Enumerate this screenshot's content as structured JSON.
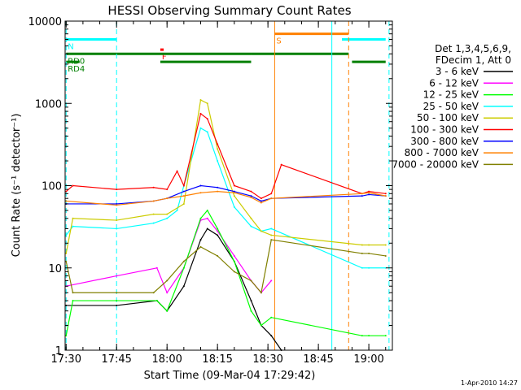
{
  "footer_date": "1-Apr-2010 14:27",
  "chart_data": {
    "type": "line",
    "title": "HESSI Observing Summary Count Rates",
    "xlabel": "Start Time (09-Mar-04 17:29:42)",
    "ylabel": "Count Rate (s⁻¹ detector⁻¹)",
    "yscale": "log",
    "ylim": [
      1,
      10000
    ],
    "xlim": [
      "17:29:42",
      "19:07:00"
    ],
    "x_ticks": [
      "17:30",
      "17:45",
      "18:00",
      "18:15",
      "18:30",
      "18:45",
      "19:00"
    ],
    "y_ticks": [
      "1",
      "10",
      "100",
      "1000",
      "10000"
    ],
    "grid": false,
    "legend_position": "right",
    "legend_header": [
      "Det 1,3,4,5,6,9,",
      "FDecim 1, Att 0"
    ],
    "series": [
      {
        "name": "3 - 6 keV",
        "color": "#000000",
        "x": [
          "17:30",
          "17:45",
          "17:57",
          "18:00",
          "18:05",
          "18:10",
          "18:12",
          "18:15",
          "18:20",
          "18:25",
          "18:28",
          "18:31",
          "18:34"
        ],
        "y": [
          3.5,
          3.5,
          4,
          3,
          6,
          22,
          30,
          25,
          12,
          4,
          2,
          1.5,
          1
        ]
      },
      {
        "name": "6 - 12 keV",
        "color": "#ff00ff",
        "x": [
          "17:30",
          "17:45",
          "17:57",
          "18:00",
          "18:05",
          "18:10",
          "18:12",
          "18:15",
          "18:20",
          "18:25",
          "18:28",
          "18:31"
        ],
        "y": [
          6,
          8,
          10,
          5,
          10,
          38,
          40,
          28,
          14,
          7,
          5,
          7
        ]
      },
      {
        "name": "12 - 25 keV",
        "color": "#00ff00",
        "x": [
          "17:30",
          "17:32",
          "17:45",
          "17:57",
          "18:00",
          "18:05",
          "18:10",
          "18:12",
          "18:15",
          "18:20",
          "18:25",
          "18:28",
          "18:31",
          "18:58",
          "19:00",
          "19:05"
        ],
        "y": [
          1.5,
          4,
          4,
          4,
          3,
          10,
          40,
          50,
          30,
          12,
          3,
          2,
          2.5,
          1.5,
          1.5,
          1.5
        ]
      },
      {
        "name": "25 - 50 keV",
        "color": "#00ffff",
        "x": [
          "17:30",
          "17:32",
          "17:45",
          "17:56",
          "18:00",
          "18:03",
          "18:05",
          "18:10",
          "18:12",
          "18:15",
          "18:20",
          "18:25",
          "18:28",
          "18:31",
          "18:58",
          "19:00",
          "19:05"
        ],
        "y": [
          25,
          32,
          30,
          35,
          40,
          50,
          100,
          500,
          450,
          200,
          55,
          32,
          28,
          30,
          10,
          10,
          10
        ]
      },
      {
        "name": "50 - 100 keV",
        "color": "#cccc00",
        "x": [
          "17:30",
          "17:32",
          "17:45",
          "17:56",
          "18:00",
          "18:05",
          "18:10",
          "18:12",
          "18:15",
          "18:20",
          "18:25",
          "18:28",
          "18:31",
          "18:58",
          "19:00",
          "19:05"
        ],
        "y": [
          15,
          40,
          38,
          45,
          45,
          60,
          1100,
          1000,
          280,
          75,
          40,
          28,
          25,
          19,
          19,
          19
        ]
      },
      {
        "name": "100 - 300 keV",
        "color": "#ff0000",
        "x": [
          "17:30",
          "17:32",
          "17:45",
          "17:56",
          "18:00",
          "18:03",
          "18:05",
          "18:10",
          "18:12",
          "18:15",
          "18:20",
          "18:25",
          "18:28",
          "18:31",
          "18:34",
          "18:58",
          "19:00",
          "19:05"
        ],
        "y": [
          85,
          100,
          90,
          95,
          90,
          150,
          100,
          750,
          650,
          320,
          100,
          85,
          70,
          80,
          180,
          80,
          85,
          80
        ]
      },
      {
        "name": "300 - 800 keV",
        "color": "#0000ff",
        "x": [
          "17:30",
          "17:45",
          "17:56",
          "18:00",
          "18:05",
          "18:10",
          "18:15",
          "18:20",
          "18:25",
          "18:28",
          "18:31",
          "18:58",
          "19:00",
          "19:05"
        ],
        "y": [
          60,
          60,
          65,
          70,
          85,
          100,
          95,
          85,
          75,
          65,
          70,
          75,
          78,
          75
        ]
      },
      {
        "name": "800 - 7000 keV",
        "color": "#ff8000",
        "x": [
          "17:30",
          "17:45",
          "17:56",
          "18:00",
          "18:05",
          "18:10",
          "18:15",
          "18:20",
          "18:25",
          "18:28",
          "18:31",
          "18:58",
          "19:00",
          "19:05"
        ],
        "y": [
          65,
          58,
          65,
          70,
          75,
          82,
          85,
          82,
          72,
          62,
          70,
          80,
          82,
          75
        ]
      },
      {
        "name": "7000 - 20000 keV",
        "color": "#808000",
        "x": [
          "17:30",
          "17:32",
          "17:45",
          "17:56",
          "18:00",
          "18:05",
          "18:10",
          "18:15",
          "18:20",
          "18:25",
          "18:28",
          "18:31",
          "18:58",
          "19:00",
          "19:05"
        ],
        "y": [
          12,
          5,
          5,
          5,
          7,
          12,
          18,
          14,
          9,
          7,
          5,
          22,
          15,
          15,
          14
        ]
      }
    ],
    "state_bars": [
      {
        "label": "N",
        "color": "#00ffff",
        "y": 6000,
        "segments": [
          [
            "17:30",
            "17:45"
          ],
          [
            "18:52",
            "19:05"
          ]
        ]
      },
      {
        "label": "F",
        "color": "#ff0000",
        "y": 4500,
        "segments": [
          [
            "17:58",
            "17:59"
          ]
        ]
      },
      {
        "label": "S",
        "color": "#ff8000",
        "y": 7000,
        "segments": [
          [
            "18:32",
            "18:54"
          ]
        ]
      },
      {
        "label": "RD0",
        "color": "#008000",
        "y": 4000,
        "segments": [
          [
            "17:30",
            "18:25"
          ],
          [
            "18:25",
            "18:54"
          ]
        ]
      },
      {
        "label": "RD4",
        "color": "#008000",
        "y": 3200,
        "segments": [
          [
            "17:30",
            "17:34"
          ],
          [
            "17:58",
            "18:25"
          ],
          [
            "18:55",
            "19:05"
          ]
        ]
      }
    ],
    "vertical_lines": [
      {
        "x": "17:30",
        "color": "#00ffff",
        "style": "dashed"
      },
      {
        "x": "17:45",
        "color": "#00ffff",
        "style": "dashed"
      },
      {
        "x": "18:32",
        "color": "#ff8000",
        "style": "solid"
      },
      {
        "x": "18:49",
        "color": "#00ffff",
        "style": "solid"
      },
      {
        "x": "18:54",
        "color": "#ff8000",
        "style": "dashed"
      },
      {
        "x": "19:06",
        "color": "#00ffff",
        "style": "dashed"
      }
    ]
  }
}
